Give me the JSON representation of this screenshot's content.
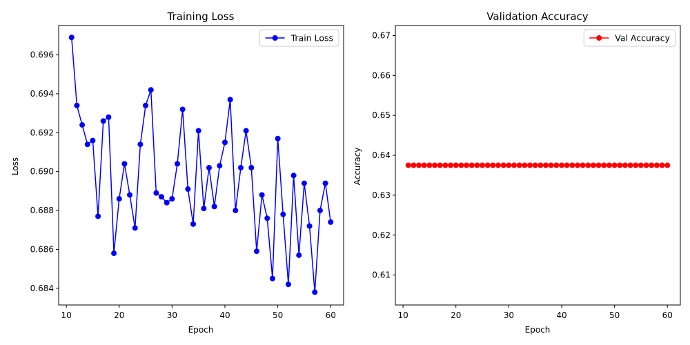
{
  "chart_data": [
    {
      "type": "line",
      "title": "Training Loss",
      "xlabel": "Epoch",
      "ylabel": "Loss",
      "xlim": [
        8.55,
        62.45
      ],
      "ylim": [
        0.68314,
        0.69751
      ],
      "xticks": [
        10,
        20,
        30,
        40,
        50,
        60
      ],
      "yticks": [
        0.684,
        0.686,
        0.688,
        0.69,
        0.692,
        0.694,
        0.696
      ],
      "ytick_format": 3,
      "grid": false,
      "legend": "top-right",
      "series": [
        {
          "name": "Train Loss",
          "color": "#0000ff",
          "marker": "circle",
          "x": [
            11,
            12,
            13,
            14,
            15,
            16,
            17,
            18,
            19,
            20,
            21,
            22,
            23,
            24,
            25,
            26,
            27,
            28,
            29,
            30,
            31,
            32,
            33,
            34,
            35,
            36,
            37,
            38,
            39,
            40,
            41,
            42,
            43,
            44,
            45,
            46,
            47,
            48,
            49,
            50,
            51,
            52,
            53,
            54,
            55,
            56,
            57,
            58,
            59,
            60
          ],
          "y": [
            0.6969,
            0.6934,
            0.6924,
            0.6914,
            0.6916,
            0.6877,
            0.6926,
            0.6928,
            0.6858,
            0.6886,
            0.6904,
            0.6888,
            0.6871,
            0.6914,
            0.6934,
            0.6942,
            0.6889,
            0.6887,
            0.6884,
            0.6886,
            0.6904,
            0.6932,
            0.6891,
            0.6873,
            0.6921,
            0.6881,
            0.6902,
            0.6882,
            0.6903,
            0.6915,
            0.6937,
            0.688,
            0.6902,
            0.6921,
            0.6902,
            0.6859,
            0.6888,
            0.6876,
            0.6845,
            0.6917,
            0.6878,
            0.6842,
            0.6898,
            0.6857,
            0.6894,
            0.6872,
            0.6838,
            0.688,
            0.6894,
            0.6874
          ]
        }
      ]
    },
    {
      "type": "line",
      "title": "Validation Accuracy",
      "xlabel": "Epoch",
      "ylabel": "Accuracy",
      "xlim": [
        8.55,
        62.45
      ],
      "ylim": [
        0.6025,
        0.6725
      ],
      "xticks": [
        10,
        20,
        30,
        40,
        50,
        60
      ],
      "yticks": [
        0.61,
        0.62,
        0.63,
        0.64,
        0.65,
        0.66,
        0.67
      ],
      "ytick_format": 2,
      "grid": false,
      "legend": "top-right",
      "series": [
        {
          "name": "Val Accuracy",
          "color": "#ff0000",
          "marker": "circle",
          "x": [
            11,
            12,
            13,
            14,
            15,
            16,
            17,
            18,
            19,
            20,
            21,
            22,
            23,
            24,
            25,
            26,
            27,
            28,
            29,
            30,
            31,
            32,
            33,
            34,
            35,
            36,
            37,
            38,
            39,
            40,
            41,
            42,
            43,
            44,
            45,
            46,
            47,
            48,
            49,
            50,
            51,
            52,
            53,
            54,
            55,
            56,
            57,
            58,
            59,
            60
          ],
          "y": [
            0.6375,
            0.6375,
            0.6375,
            0.6375,
            0.6375,
            0.6375,
            0.6375,
            0.6375,
            0.6375,
            0.6375,
            0.6375,
            0.6375,
            0.6375,
            0.6375,
            0.6375,
            0.6375,
            0.6375,
            0.6375,
            0.6375,
            0.6375,
            0.6375,
            0.6375,
            0.6375,
            0.6375,
            0.6375,
            0.6375,
            0.6375,
            0.6375,
            0.6375,
            0.6375,
            0.6375,
            0.6375,
            0.6375,
            0.6375,
            0.6375,
            0.6375,
            0.6375,
            0.6375,
            0.6375,
            0.6375,
            0.6375,
            0.6375,
            0.6375,
            0.6375,
            0.6375,
            0.6375,
            0.6375,
            0.6375,
            0.6375,
            0.6375
          ]
        }
      ]
    }
  ]
}
